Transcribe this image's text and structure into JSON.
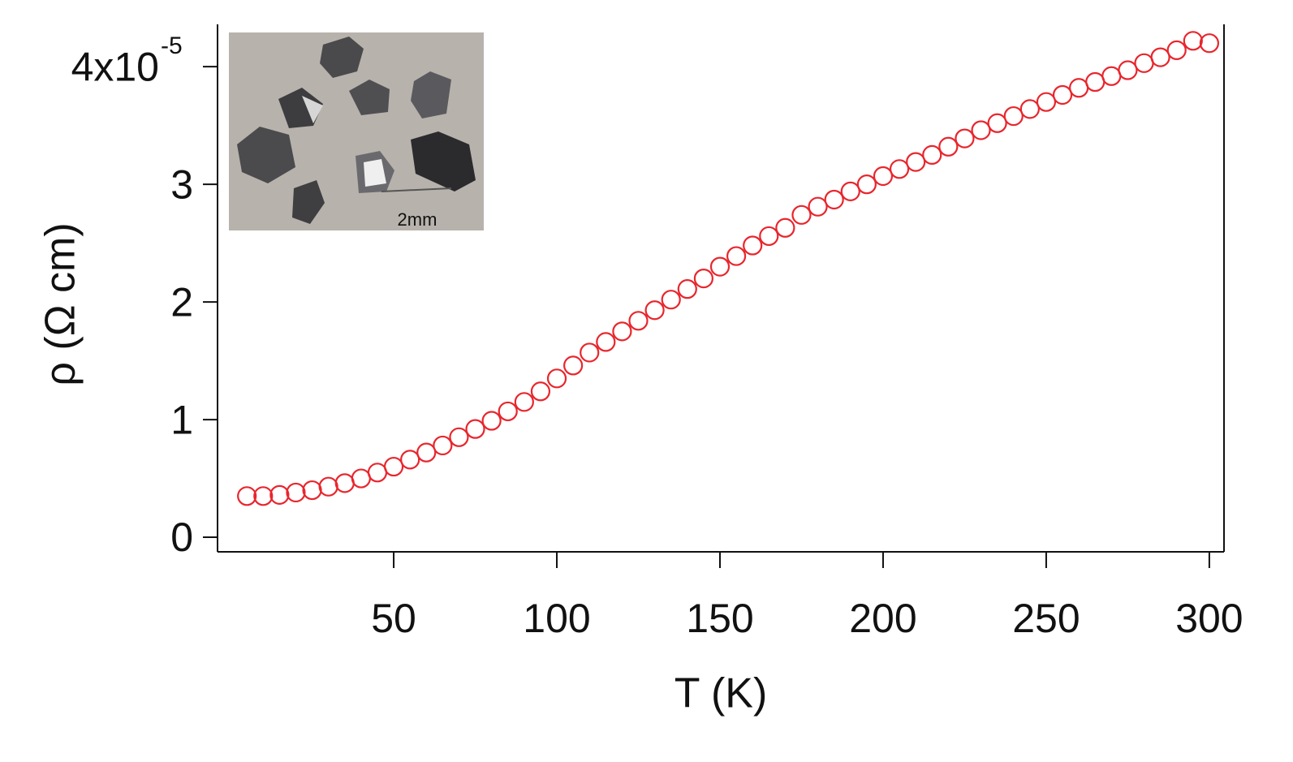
{
  "chart_data": {
    "type": "scatter",
    "xlabel": "T (K)",
    "ylabel": "ρ (Ω cm)",
    "inset_label": "2mm",
    "x": [
      5,
      10,
      15,
      20,
      25,
      30,
      35,
      40,
      45,
      50,
      55,
      60,
      65,
      70,
      75,
      80,
      85,
      90,
      95,
      100,
      105,
      110,
      115,
      120,
      125,
      130,
      135,
      140,
      145,
      150,
      155,
      160,
      165,
      170,
      175,
      180,
      185,
      190,
      195,
      200,
      205,
      210,
      215,
      220,
      225,
      230,
      235,
      240,
      245,
      250,
      255,
      260,
      265,
      270,
      275,
      280,
      285,
      290,
      295,
      300
    ],
    "series": [
      {
        "color": "#e8262d",
        "values": [
          0.35,
          0.35,
          0.36,
          0.38,
          0.4,
          0.43,
          0.46,
          0.5,
          0.55,
          0.6,
          0.66,
          0.72,
          0.78,
          0.85,
          0.92,
          0.99,
          1.07,
          1.15,
          1.24,
          1.35,
          1.46,
          1.57,
          1.66,
          1.75,
          1.84,
          1.93,
          2.02,
          2.11,
          2.2,
          2.3,
          2.39,
          2.48,
          2.56,
          2.63,
          2.74,
          2.81,
          2.87,
          2.94,
          3.0,
          3.07,
          3.13,
          3.19,
          3.25,
          3.32,
          3.39,
          3.46,
          3.52,
          3.58,
          3.64,
          3.7,
          3.76,
          3.82,
          3.87,
          3.92,
          3.97,
          4.03,
          4.08,
          4.14,
          4.22,
          4.2
        ]
      }
    ],
    "xlim": [
      -4,
      304.5
    ],
    "ylim": [
      -0.124,
      4.36
    ],
    "xticks": [
      50,
      100,
      150,
      200,
      250,
      300
    ],
    "yticks": [
      0,
      1,
      2,
      3,
      {
        "value": 4,
        "label": "4x10",
        "sup": "-5"
      }
    ],
    "marker": "open-circle"
  }
}
